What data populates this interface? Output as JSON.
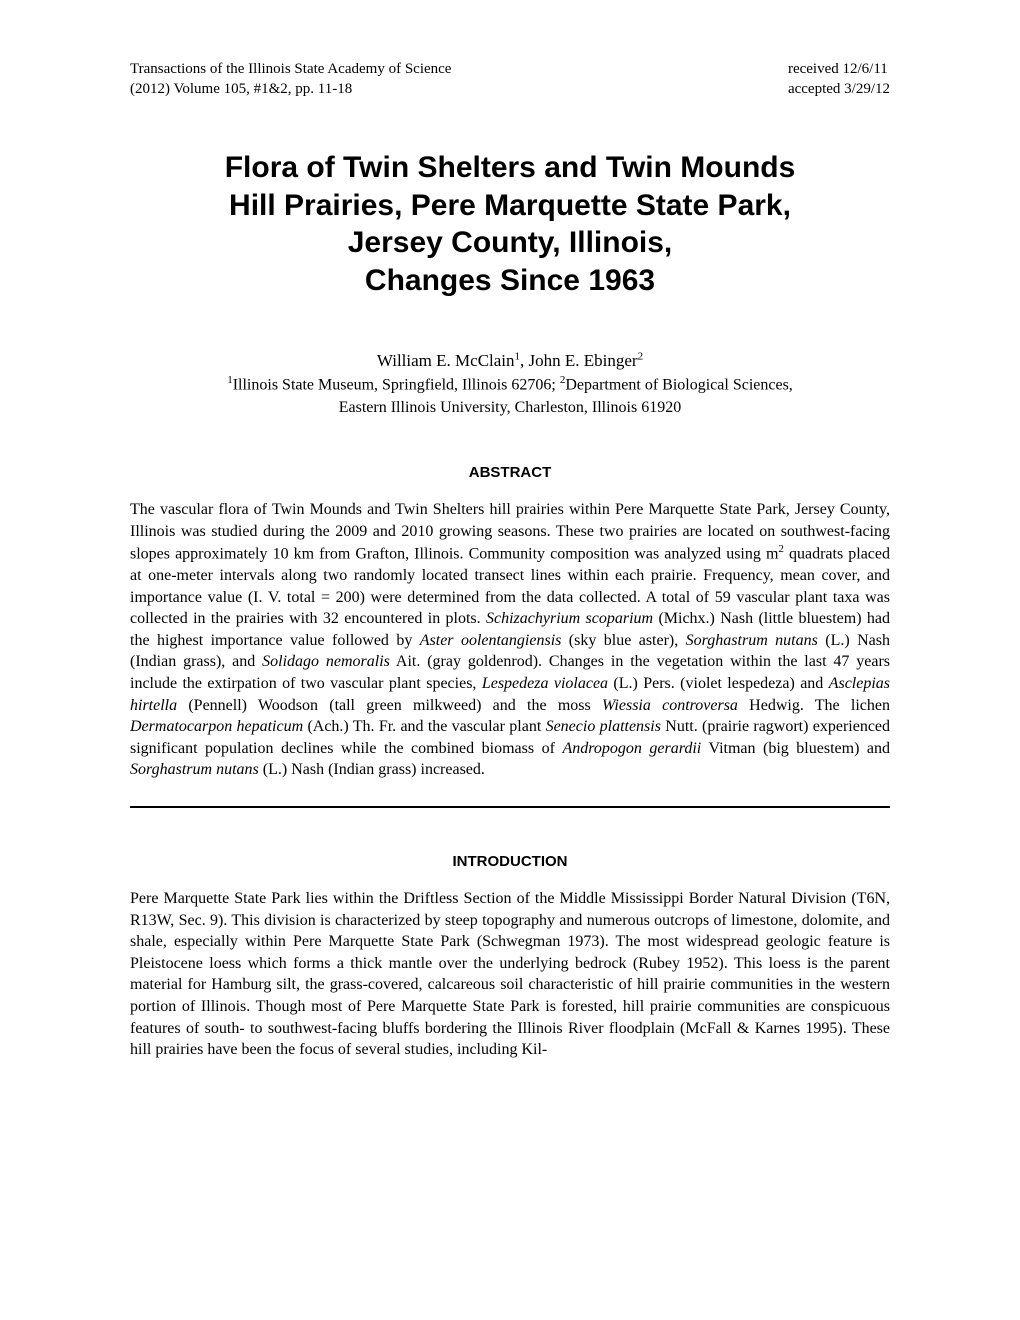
{
  "header": {
    "journal": "Transactions of the Illinois State Academy of Science",
    "volume": "(2012) Volume 105, #1&2, pp. 11-18",
    "received": "received 12/6/11",
    "accepted": "accepted 3/29/12"
  },
  "title": {
    "line1": "Flora of Twin Shelters and Twin Mounds",
    "line2": "Hill Prairies, Pere Marquette State Park,",
    "line3": "Jersey County, Illinois,",
    "line4": "Changes Since 1963"
  },
  "authors": {
    "author1_name": "William E. McClain",
    "author1_sup": "1",
    "separator": ", ",
    "author2_name": "John E. Ebinger",
    "author2_sup": "2"
  },
  "affiliations": {
    "aff1_sup": "1",
    "aff1_text": "Illinois State Museum, Springfield, Illinois 62706; ",
    "aff2_sup": "2",
    "aff2_text": "Department of Biological Sciences,",
    "aff2_line2": "Eastern Illinois University, Charleston, Illinois 61920"
  },
  "abstract": {
    "heading": "ABSTRACT",
    "p1_a": "The vascular flora of Twin Mounds and Twin Shelters hill prairies within Pere Marquette State Park, Jersey County, Illinois was studied during the 2009 and 2010 growing seasons. These two prairies are located on southwest-facing slopes approximately 10 km from Grafton, Illinois. Community composition was analyzed using m",
    "p1_sup": "2",
    "p1_b": " quadrats placed at one-meter intervals along two randomly located transect lines within each prairie. Frequency, mean cover, and importance value (I. V. total = 200) were determined from the data collected. A total of 59 vascular plant taxa was collected in the prairies with 32 encountered in plots. ",
    "sp1": "Schizachyrium scoparium",
    "p1_c": " (Michx.) Nash (little bluestem) had the highest importance value followed by ",
    "sp2": "Aster oolentangiensis",
    "p1_d": " (sky blue aster), ",
    "sp3": "Sorghastrum nutans",
    "p1_e": " (L.) Nash (Indian grass), and ",
    "sp4": "Solidago nemoralis",
    "p1_f": " Ait. (gray goldenrod). Changes in the vegetation within the last 47 years include the extirpation of two vascular plant species, ",
    "sp5": "Lespedeza violacea",
    "p1_g": " (L.) Pers. (violet lespedeza) and ",
    "sp6": "Asclepias hirtella",
    "p1_h": " (Pennell) Woodson (tall green milkweed) and the moss ",
    "sp7": "Wiessia controversa",
    "p1_i": " Hedwig. The lichen ",
    "sp8": "Dermatocarpon hepaticum",
    "p1_j": " (Ach.) Th. Fr. and the vascular plant ",
    "sp9": "Senecio plattensis",
    "p1_k": " Nutt. (prairie ragwort) experienced significant population declines while the combined biomass of ",
    "sp10": "Andropogon gerardii",
    "p1_l": " Vitman (big bluestem) and ",
    "sp11": "Sorghastrum nutans",
    "p1_m": " (L.) Nash (Indian grass) increased."
  },
  "introduction": {
    "heading": "INTRODUCTION",
    "text": "Pere Marquette State Park lies within the Driftless Section of the Middle Mississippi Border Natural Division (T6N, R13W, Sec. 9). This division is characterized by steep topography and numerous outcrops of limestone, dolomite, and shale, especially within Pere Marquette State Park (Schwegman 1973). The most widespread geologic feature is Pleistocene loess which forms a thick mantle over the underlying bedrock (Rubey 1952). This loess is the parent material for Hamburg silt, the grass-covered, calcareous soil characteristic of hill prairie communities in the western portion of Illinois. Though most of Pere Marquette State Park is forested, hill prairie communities are conspicuous features of south- to southwest-facing bluffs bordering the Illinois River floodplain (McFall & Karnes 1995). These hill prairies have been the focus of several studies, including Kil-"
  }
}
